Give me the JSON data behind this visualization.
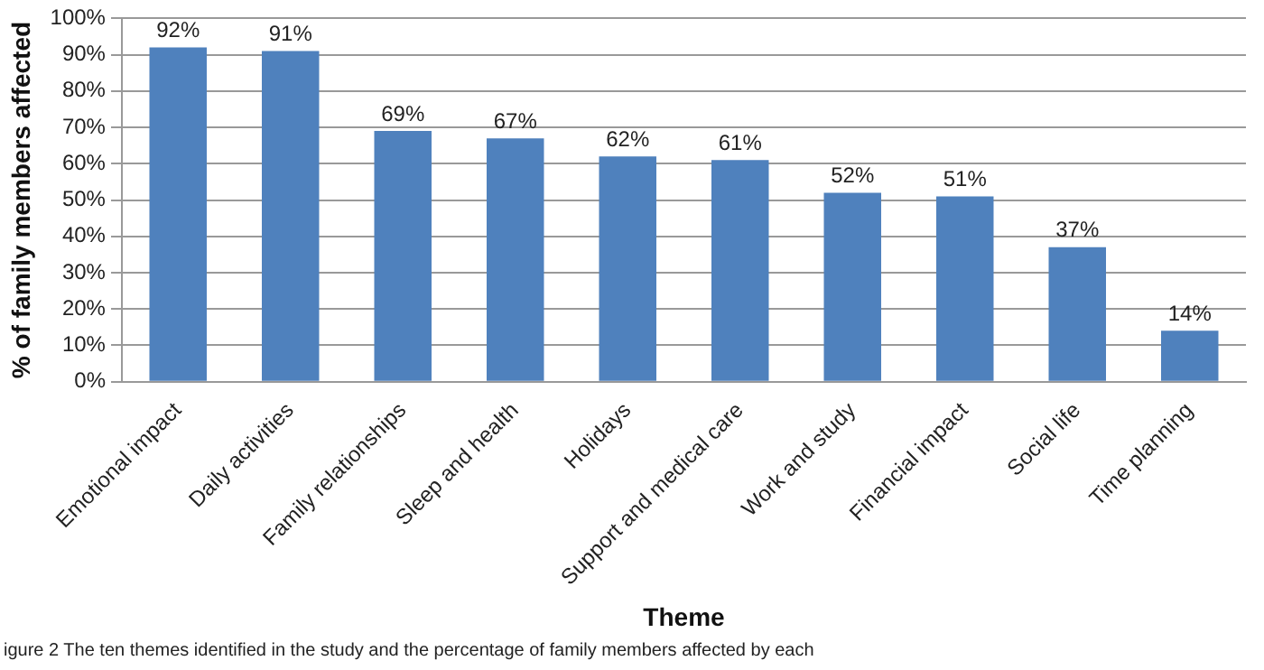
{
  "chart_data": {
    "type": "bar",
    "xlabel": "Theme",
    "ylabel": "% of family members affected",
    "categories": [
      "Emotional impact",
      "Daily activities",
      "Family relationships",
      "Sleep and health",
      "Holidays",
      "Support and medical care",
      "Work and study",
      "Financial impact",
      "Social life",
      "Time planning"
    ],
    "values": [
      92,
      91,
      69,
      67,
      62,
      61,
      52,
      51,
      37,
      14
    ],
    "value_labels": [
      "92%",
      "91%",
      "69%",
      "67%",
      "62%",
      "61%",
      "52%",
      "51%",
      "37%",
      "14%"
    ],
    "color": "#4f81bd",
    "ylim": [
      0,
      100
    ],
    "yticks": [
      {
        "value": 0,
        "label": "0%"
      },
      {
        "value": 10,
        "label": "10%"
      },
      {
        "value": 20,
        "label": "20%"
      },
      {
        "value": 30,
        "label": "30%"
      },
      {
        "value": 40,
        "label": "40%"
      },
      {
        "value": 50,
        "label": "50%"
      },
      {
        "value": 60,
        "label": "60%"
      },
      {
        "value": 70,
        "label": "70%"
      },
      {
        "value": 80,
        "label": "80%"
      },
      {
        "value": 90,
        "label": "90%"
      },
      {
        "value": 100,
        "label": "100%"
      }
    ],
    "grid": "y",
    "legend": false,
    "annotations": [
      "igure 2 The ten themes identified in the study and the percentage of family members affected by each"
    ]
  }
}
